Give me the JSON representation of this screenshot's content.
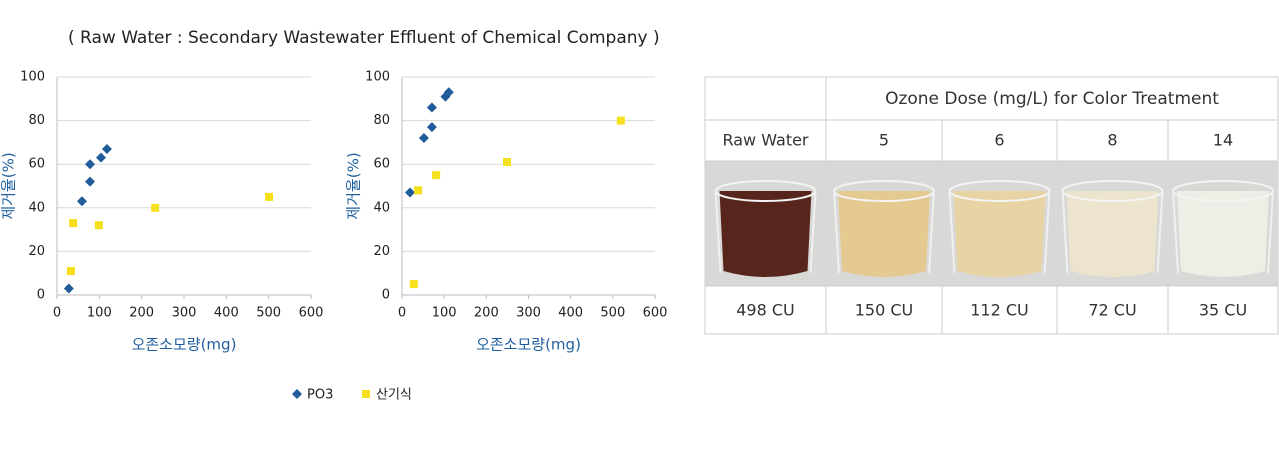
{
  "caption": "( Raw Water : Secondary Wastewater Effluent of Chemical Company )",
  "chart_data": [
    {
      "type": "scatter",
      "xlabel": "오존소모량(mg)",
      "ylabel": "제거율(%)",
      "xlim": [
        0,
        600
      ],
      "xticks": [
        0,
        100,
        200,
        300,
        400,
        500,
        600
      ],
      "ylim": [
        0,
        100
      ],
      "yticks": [
        0,
        20,
        40,
        60,
        80,
        100
      ],
      "grid": true,
      "series": [
        {
          "name": "PO3",
          "color": "#1f5c99",
          "marker": "diamond",
          "x": [
            28,
            59,
            78,
            78,
            104,
            118
          ],
          "values": [
            3,
            43,
            52,
            60,
            63,
            67
          ]
        },
        {
          "name": "산기식",
          "color": "#f5e01b",
          "marker": "square",
          "x": [
            33,
            38,
            99,
            232,
            501
          ],
          "values": [
            11,
            33,
            32,
            40,
            45
          ]
        }
      ]
    },
    {
      "type": "scatter",
      "xlabel": "오존소모량(mg)",
      "ylabel": "제거율(%)",
      "xlim": [
        0,
        600
      ],
      "xticks": [
        0,
        100,
        200,
        300,
        400,
        500,
        600
      ],
      "ylim": [
        0,
        100
      ],
      "yticks": [
        0,
        20,
        40,
        60,
        80,
        100
      ],
      "grid": true,
      "series": [
        {
          "color": "#1f5c99",
          "marker": "diamond",
          "x": [
            19,
            52,
            71,
            71,
            103,
            111
          ],
          "values": [
            47,
            72,
            77,
            86,
            91,
            93
          ]
        },
        {
          "color": "#f5e01b",
          "marker": "square",
          "x": [
            28,
            38,
            81,
            249,
            519
          ],
          "values": [
            5,
            48,
            55,
            61,
            80
          ]
        }
      ]
    }
  ],
  "table": {
    "header": "Ozone Dose (mg/L) for Color Treatment",
    "raw_label": "Raw Water",
    "doses": [
      5,
      6,
      8,
      14
    ],
    "results": [
      "498 CU",
      "150 CU",
      "112 CU",
      "72 CU",
      "35 CU"
    ]
  }
}
